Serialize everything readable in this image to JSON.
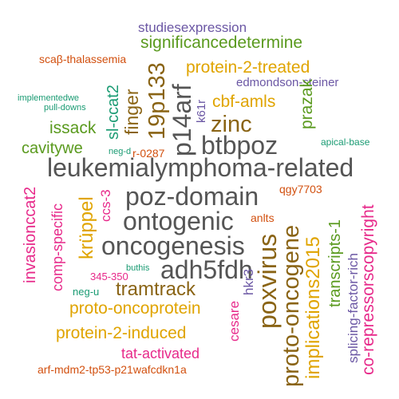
{
  "words": [
    {
      "text": "studiesexpression",
      "color": "#6b57a4"
    },
    {
      "text": "significancedetermine",
      "color": "#5a9a1e"
    },
    {
      "text": "scaβ-thalassemia",
      "color": "#d2500f"
    },
    {
      "text": "protein-2-treated",
      "color": "#e0a400"
    },
    {
      "text": "edmondson-steiner",
      "color": "#6b57a4"
    },
    {
      "text": "implementedwe",
      "color": "#1a9b73"
    },
    {
      "text": "pull-downs",
      "color": "#1a9b73"
    },
    {
      "text": "19p133",
      "color": "#8a6415"
    },
    {
      "text": "p14arf",
      "color": "#555555"
    },
    {
      "text": "finger",
      "color": "#8a6415"
    },
    {
      "text": "sl-ccat2",
      "color": "#1a9b73"
    },
    {
      "text": "cbf-amls",
      "color": "#e0a400"
    },
    {
      "text": "k61r",
      "color": "#6b57a4"
    },
    {
      "text": "prazak",
      "color": "#5a9a1e"
    },
    {
      "text": "issack",
      "color": "#5a9a1e"
    },
    {
      "text": "zinc",
      "color": "#8a6415"
    },
    {
      "text": "cavitywe",
      "color": "#5a9a1e"
    },
    {
      "text": "btbpoz",
      "color": "#555555"
    },
    {
      "text": "neg-d",
      "color": "#1a9b73"
    },
    {
      "text": "r-0287",
      "color": "#d2500f"
    },
    {
      "text": "apical-base",
      "color": "#1a9b73"
    },
    {
      "text": "leukemialymphoma-related",
      "color": "#555555"
    },
    {
      "text": "invasionccat2",
      "color": "#e7298a"
    },
    {
      "text": "qgy7703",
      "color": "#d2500f"
    },
    {
      "text": "poz-domain",
      "color": "#555555"
    },
    {
      "text": "ccs-3",
      "color": "#e7298a"
    },
    {
      "text": "krüppel",
      "color": "#e0a400"
    },
    {
      "text": "transcripts-1",
      "color": "#5a9a1e"
    },
    {
      "text": "ontogenic",
      "color": "#555555"
    },
    {
      "text": "proto-oncogene",
      "color": "#8a6415"
    },
    {
      "text": "implications2015",
      "color": "#e0a400"
    },
    {
      "text": "co-repressorscopyright",
      "color": "#e7298a"
    },
    {
      "text": "anlts",
      "color": "#d2500f"
    },
    {
      "text": "comp-specific",
      "color": "#e7298a"
    },
    {
      "text": "oncogenesis",
      "color": "#555555"
    },
    {
      "text": "poxvirus",
      "color": "#8a6415"
    },
    {
      "text": "splicing-factor-rich",
      "color": "#6b57a4"
    },
    {
      "text": "adh5fdh",
      "color": "#555555"
    },
    {
      "text": "buthis",
      "color": "#1a9b73"
    },
    {
      "text": "hkr3",
      "color": "#6b57a4"
    },
    {
      "text": "345-350",
      "color": "#e7298a"
    },
    {
      "text": "neg-u",
      "color": "#1a9b73"
    },
    {
      "text": "tramtrack",
      "color": "#8a6415"
    },
    {
      "text": "cesare",
      "color": "#e7298a"
    },
    {
      "text": "proto-oncoprotein",
      "color": "#e0a400"
    },
    {
      "text": "protein-2-induced",
      "color": "#e0a400"
    },
    {
      "text": "tat-activated",
      "color": "#e7298a"
    },
    {
      "text": "arf-mdm2-tp53-p21wafcdkn1a",
      "color": "#d2500f"
    }
  ]
}
